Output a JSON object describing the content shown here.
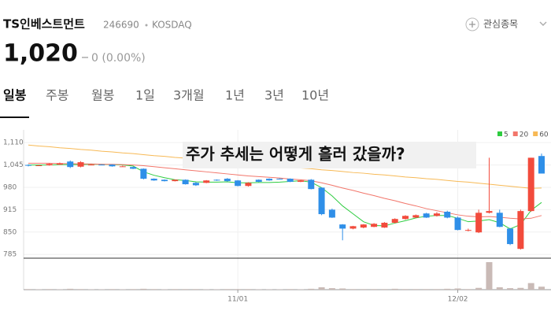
{
  "header": {
    "name": "TS인베스트먼트",
    "code": "246690",
    "market": "KOSDAQ",
    "watch": "관심종목",
    "price": "1,020",
    "change": "0 (0.00%)"
  },
  "tabs": [
    "일봉",
    "주봉",
    "월봉",
    "1일",
    "3개월",
    "1년",
    "3년",
    "10년"
  ],
  "overlay": "주가 추세는 어떻게 흘러 갔을까?",
  "chart_data": {
    "type": "candlestick",
    "categories": [
      null,
      null,
      null,
      null,
      null,
      null,
      null,
      null,
      null,
      null,
      null,
      null,
      null,
      null,
      null,
      null,
      null,
      null,
      null,
      null,
      "11/01",
      null,
      null,
      null,
      null,
      null,
      null,
      null,
      null,
      null,
      null,
      null,
      null,
      null,
      null,
      null,
      null,
      null,
      null,
      null,
      null,
      "12/02",
      null,
      null,
      null,
      null,
      null,
      null,
      null,
      null
    ],
    "open": [
      1045,
      1044,
      1044,
      1046,
      1055,
      1040,
      1046,
      1046,
      1046,
      1041,
      1039,
      1034,
      1005,
      1002,
      998,
      1002,
      993,
      993,
      1002,
      1005,
      1000,
      984,
      1002,
      1005,
      1005,
      1005,
      996,
      1002,
      979,
      915,
      872,
      860,
      863,
      865,
      863,
      877,
      888,
      892,
      904,
      897,
      909,
      892,
      854,
      849,
      906,
      906,
      860,
      801,
      911,
      1071
    ],
    "high": [
      1047,
      1046,
      1050,
      1052,
      1058,
      1056,
      1048,
      1047,
      1047,
      1043,
      1040,
      1035,
      1006,
      1003,
      1003,
      1003,
      995,
      1001,
      1003,
      1007,
      1001,
      995,
      1003,
      1006,
      1006,
      1006,
      1001,
      1004,
      980,
      918,
      873,
      868,
      873,
      876,
      879,
      890,
      899,
      901,
      906,
      908,
      912,
      895,
      860,
      915,
      1066,
      915,
      862,
      915,
      1066,
      1078
    ],
    "low": [
      1041,
      1042,
      1043,
      1045,
      1036,
      1038,
      1045,
      1044,
      1040,
      1040,
      1033,
      1003,
      999,
      997,
      997,
      988,
      984,
      992,
      999,
      997,
      983,
      982,
      995,
      999,
      1003,
      995,
      995,
      974,
      899,
      891,
      826,
      858,
      861,
      864,
      862,
      875,
      886,
      891,
      891,
      895,
      890,
      855,
      852,
      847,
      904,
      864,
      812,
      799,
      909,
      1020
    ],
    "close": [
      1043,
      1044,
      1048,
      1050,
      1039,
      1053,
      1046,
      1045,
      1041,
      1041,
      1034,
      1005,
      1000,
      998,
      1002,
      989,
      986,
      1000,
      1000,
      998,
      984,
      993,
      996,
      1000,
      1004,
      996,
      1000,
      975,
      902,
      892,
      860,
      867,
      872,
      874,
      877,
      888,
      897,
      899,
      892,
      904,
      892,
      856,
      856,
      906,
      911,
      865,
      815,
      911,
      1066,
      1020
    ],
    "series": [
      {
        "name": "5",
        "color": "#2ecc40",
        "values": [
          1045,
          1045,
          1045,
          1046,
          1046,
          1046,
          1047,
          1047,
          1046,
          1045,
          1042,
          1025,
          1015,
          1008,
          1002,
          1000,
          996,
          995,
          995,
          996,
          993,
          993,
          994,
          994,
          995,
          997,
          999,
          995,
          979,
          955,
          926,
          903,
          880,
          869,
          868,
          876,
          883,
          891,
          896,
          898,
          898,
          890,
          880,
          882,
          886,
          877,
          859,
          872,
          913,
          936
        ]
      },
      {
        "name": "20",
        "color": "#f2766b",
        "values": [
          1050,
          1050,
          1050,
          1049,
          1049,
          1048,
          1048,
          1047,
          1047,
          1046,
          1045,
          1043,
          1040,
          1037,
          1034,
          1031,
          1028,
          1025,
          1022,
          1019,
          1016,
          1013,
          1011,
          1009,
          1007,
          1004,
          1002,
          999,
          993,
          986,
          978,
          971,
          963,
          956,
          948,
          941,
          933,
          926,
          918,
          912,
          906,
          900,
          896,
          894,
          895,
          893,
          890,
          888,
          890,
          898
        ]
      },
      {
        "name": "60",
        "color": "#f7b955",
        "values": [
          1103,
          1100,
          1098,
          1095,
          1093,
          1090,
          1088,
          1085,
          1083,
          1080,
          1078,
          1075,
          1072,
          1070,
          1067,
          1065,
          1062,
          1060,
          1057,
          1055,
          1052,
          1049,
          1047,
          1044,
          1042,
          1039,
          1036,
          1034,
          1031,
          1029,
          1026,
          1023,
          1021,
          1018,
          1016,
          1013,
          1010,
          1008,
          1005,
          1003,
          1000,
          997,
          995,
          992,
          989,
          986,
          983,
          980,
          977,
          978
        ]
      }
    ],
    "volume": [
      2,
      1,
      2,
      1,
      3,
      2,
      1,
      1,
      2,
      1,
      2,
      3,
      2,
      1,
      2,
      2,
      2,
      1,
      1,
      2,
      2,
      2,
      1,
      1,
      1,
      2,
      1,
      3,
      8,
      5,
      4,
      2,
      2,
      2,
      2,
      3,
      2,
      2,
      2,
      2,
      3,
      4,
      2,
      6,
      92,
      8,
      5,
      6,
      22,
      10
    ],
    "volume_lim": [
      0,
      100
    ],
    "ylim": [
      774,
      1147
    ],
    "yticks": [
      {
        "value": 1110,
        "label": "1,110"
      },
      {
        "value": 1045,
        "label": "1,045"
      },
      980,
      915,
      850,
      785
    ],
    "grid": true,
    "up_color": "#f24b3c",
    "down_color": "#2f8fe8",
    "volume_color": "#c9bab6"
  }
}
